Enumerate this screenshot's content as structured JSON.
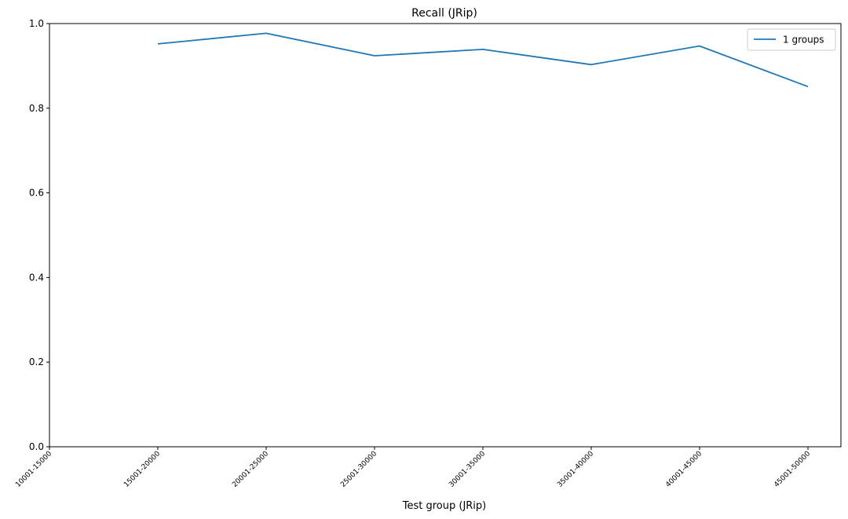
{
  "chart_data": {
    "type": "line",
    "title": "Recall (JRip)",
    "xlabel": "Test group (JRip)",
    "ylabel": "",
    "categories": [
      "10001-15000",
      "15001-20000",
      "20001-25000",
      "25001-30000",
      "30001-35000",
      "35001-40000",
      "40001-45000",
      "45001-50000"
    ],
    "ylim": [
      0,
      1.0
    ],
    "yticks": [
      "0.0",
      "0.2",
      "0.4",
      "0.6",
      "0.8",
      "1.0"
    ],
    "grid": false,
    "legend_position": "top-right",
    "series": [
      {
        "name": "1 groups",
        "color": "#1f77b4",
        "values": [
          null,
          0.952,
          0.977,
          0.924,
          0.939,
          0.903,
          0.947,
          0.851
        ]
      }
    ]
  }
}
